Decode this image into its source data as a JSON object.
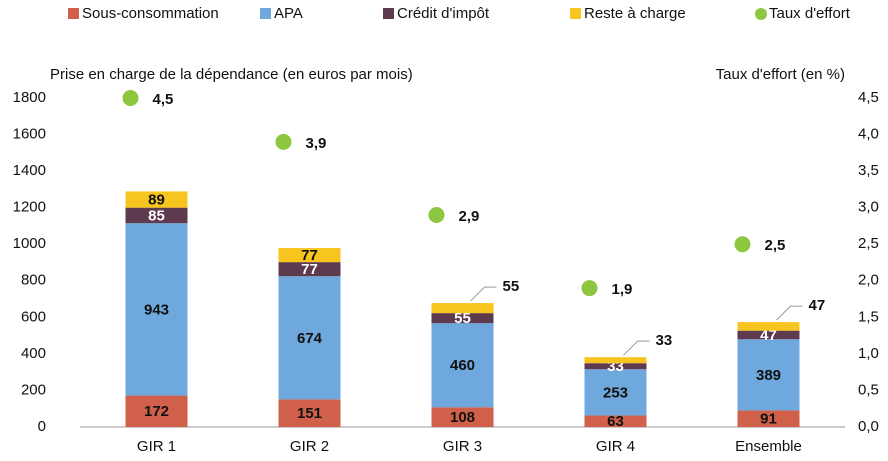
{
  "chart_data": {
    "type": "bar",
    "stacked": true,
    "y_label": "Prise en charge de la dépendance (en euros par mois)",
    "y2_label": "Taux d'effort (en %)",
    "categories": [
      "GIR 1",
      "GIR 2",
      "GIR 3",
      "GIR 4",
      "Ensemble"
    ],
    "series": [
      {
        "name": "Sous-consommation",
        "color": "#d0604a",
        "values": [
          172,
          151,
          108,
          63,
          91
        ]
      },
      {
        "name": "APA",
        "color": "#6fa8dc",
        "values": [
          943,
          674,
          460,
          253,
          389
        ]
      },
      {
        "name": "Crédit d'impôt",
        "color": "#5e3a4e",
        "values": [
          85,
          77,
          55,
          33,
          47
        ]
      },
      {
        "name": "Reste à charge",
        "color": "#f7c51e",
        "values": [
          89,
          77,
          55,
          33,
          47
        ]
      },
      {
        "name": "Taux d'effort",
        "color": "#8dc63f",
        "type": "scatter",
        "axis": "y2",
        "values": [
          4.5,
          3.9,
          2.9,
          1.9,
          2.5
        ],
        "value_labels": [
          "4,5",
          "3,9",
          "2,9",
          "1,9",
          "2,5"
        ]
      }
    ],
    "ylim": [
      0,
      1800
    ],
    "yticks": [
      0,
      200,
      400,
      600,
      800,
      1000,
      1200,
      1400,
      1600,
      1800
    ],
    "y2lim": [
      0,
      4.5
    ],
    "y2ticks": [
      {
        "value": 0,
        "label": "0,0"
      },
      {
        "value": 0.5,
        "label": "0,5"
      },
      {
        "value": 1,
        "label": "1,0"
      },
      {
        "value": 1.5,
        "label": "1,5"
      },
      {
        "value": 2,
        "label": "2,0"
      },
      {
        "value": 2.5,
        "label": "2,5"
      },
      {
        "value": 3,
        "label": "3,0"
      },
      {
        "value": 3.5,
        "label": "3,5"
      },
      {
        "value": 4,
        "label": "4,0"
      },
      {
        "value": 4.5,
        "label": "4,5"
      }
    ],
    "legend": "top",
    "grid": false
  }
}
